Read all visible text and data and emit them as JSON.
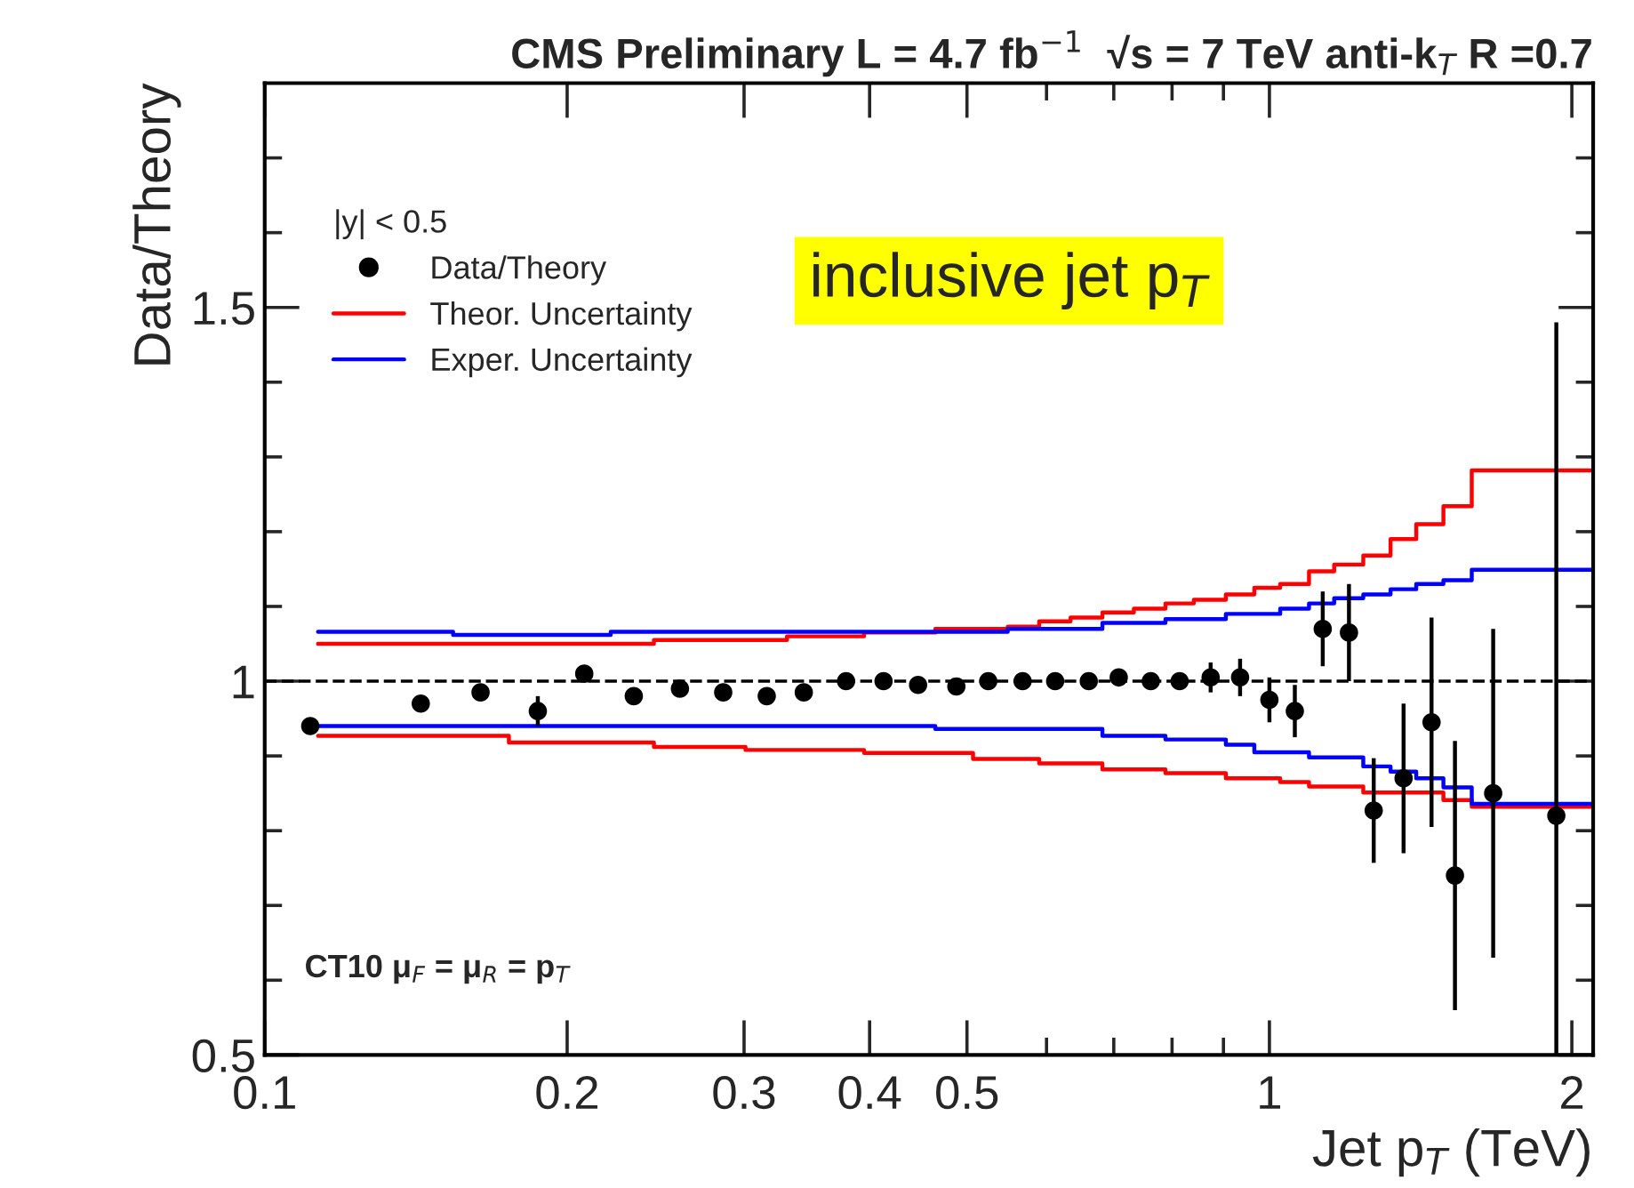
{
  "chart_data": {
    "type": "scatter",
    "title": "CMS Preliminary L = 4.7 fb$^{−1}$  √s = 7 TeV anti-k$_{T}$ R =0.7",
    "xlabel": "Jet p$_{T}$ (TeV)",
    "ylabel": "Data/Theory",
    "legend_title": "|y| < 0.5",
    "annotations": [
      "inclusive jet p$_{T}$",
      "CT10 μ$_{F}$ = μ$_{R}$ = p$_{T}$"
    ],
    "log": "x",
    "xlim": [
      0.1,
      2.1
    ],
    "ylim": [
      0.5,
      1.8
    ],
    "xticks": [
      0.1,
      0.2,
      0.3,
      0.4,
      0.5,
      {
        "value": 0.6,
        "label": null
      },
      {
        "value": 0.7,
        "label": null
      },
      {
        "value": 0.8,
        "label": null
      },
      {
        "value": 0.9,
        "label": null
      },
      1,
      2
    ],
    "yticks": [
      0.5,
      {
        "value": 0.6,
        "label": null
      },
      {
        "value": 0.7,
        "label": null
      },
      {
        "value": 0.8,
        "label": null
      },
      {
        "value": 0.9,
        "label": null
      },
      1,
      {
        "value": 1.1,
        "label": null
      },
      {
        "value": 1.2,
        "label": null
      },
      {
        "value": 1.3,
        "label": null
      },
      {
        "value": 1.4,
        "label": null
      },
      1.5,
      {
        "value": 1.6,
        "label": null
      },
      {
        "value": 1.7,
        "label": null
      }
    ],
    "grid": false,
    "legend": "top left",
    "ref_lines": [
      {
        "axis": "y",
        "value": 1,
        "label": null,
        "color": "#000000",
        "line_style": "dashed"
      }
    ],
    "series": [
      {
        "name": "Data/Theory",
        "marker": "circle",
        "color": "#000000",
        "x": [
          0.111,
          0.143,
          0.164,
          0.187,
          0.208,
          0.233,
          0.259,
          0.286,
          0.316,
          0.344,
          0.379,
          0.413,
          0.447,
          0.488,
          0.525,
          0.568,
          0.612,
          0.661,
          0.708,
          0.762,
          0.814,
          0.874,
          0.935,
          1.0,
          1.06,
          1.13,
          1.2,
          1.27,
          1.36,
          1.45,
          1.53,
          1.67,
          1.93
        ],
        "values": [
          0.94,
          0.97,
          0.985,
          0.96,
          1.01,
          0.98,
          0.99,
          0.985,
          0.98,
          0.985,
          1.0,
          1.0,
          0.995,
          0.993,
          1.0,
          1.0,
          1.0,
          1.0,
          1.005,
          1.0,
          1.0,
          1.005,
          1.005,
          0.975,
          0.96,
          1.07,
          1.065,
          0.827,
          0.87,
          0.945,
          0.74,
          0.85,
          0.82
        ],
        "errors": [
          null,
          null,
          0.01,
          0.02,
          0.01,
          null,
          0.01,
          0.01,
          null,
          0.01,
          null,
          null,
          null,
          null,
          null,
          null,
          null,
          null,
          null,
          null,
          null,
          0.02,
          0.025,
          0.03,
          0.035,
          0.05,
          0.065,
          0.07,
          0.1,
          0.14,
          0.18,
          0.22,
          [
            0.5,
            1.48
          ]
        ]
      },
      {
        "name": "Theor. Uncertainty",
        "type": "step",
        "color": "#ff0000",
        "x": [
          0.113,
          0.244,
          0.331,
          0.395,
          0.465,
          0.549,
          0.59,
          0.634,
          0.682,
          0.733,
          0.788,
          0.841,
          0.905,
          0.966,
          1.025,
          1.095,
          1.16,
          1.24,
          1.32,
          1.4,
          1.49,
          1.59,
          2.1
        ],
        "values": [
          1.05,
          1.055,
          1.06,
          1.065,
          1.07,
          1.073,
          1.08,
          1.085,
          1.092,
          1.097,
          1.104,
          1.109,
          1.116,
          1.125,
          1.13,
          1.147,
          1.156,
          1.168,
          1.19,
          1.21,
          1.234,
          1.282,
          1.282
        ]
      },
      {
        "type": "step",
        "color": "#ff0000",
        "x": [
          0.113,
          0.175,
          0.244,
          0.301,
          0.395,
          0.507,
          0.59,
          0.682,
          0.788,
          0.905,
          1.025,
          1.095,
          1.24,
          1.49,
          1.59,
          2.1
        ],
        "values": [
          0.927,
          0.918,
          0.912,
          0.908,
          0.904,
          0.896,
          0.89,
          0.882,
          0.877,
          0.87,
          0.865,
          0.859,
          0.851,
          0.841,
          0.832,
          0.832
        ]
      },
      {
        "name": "Exper. Uncertainty",
        "type": "step",
        "color": "#0000ff",
        "x": [
          0.113,
          0.154,
          0.221,
          0.549,
          0.682,
          0.788,
          0.905,
          1.025,
          1.095,
          1.16,
          1.24,
          1.32,
          1.4,
          1.49,
          1.59,
          2.1
        ],
        "values": [
          1.066,
          1.062,
          1.066,
          1.07,
          1.078,
          1.083,
          1.09,
          1.097,
          1.104,
          1.111,
          1.116,
          1.123,
          1.13,
          1.135,
          1.149,
          1.149
        ]
      },
      {
        "type": "step",
        "color": "#0000ff",
        "x": [
          0.113,
          0.465,
          0.682,
          0.788,
          0.905,
          0.966,
          1.095,
          1.24,
          1.32,
          1.4,
          1.49,
          1.59,
          2.1
        ],
        "values": [
          0.94,
          0.936,
          0.927,
          0.922,
          0.915,
          0.905,
          0.898,
          0.886,
          0.879,
          0.87,
          0.858,
          0.836,
          0.836
        ]
      }
    ]
  }
}
